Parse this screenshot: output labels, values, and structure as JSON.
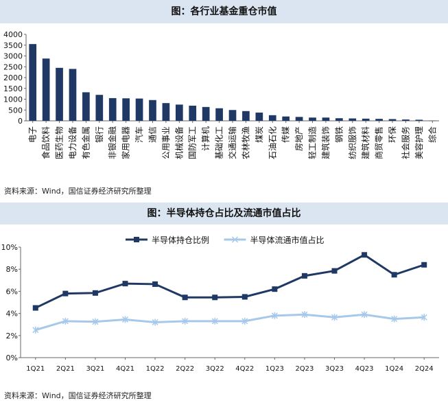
{
  "chart_data": [
    {
      "type": "bar",
      "title": "图：各行业基金重仓市值",
      "source": "资料来源：Wind，国信证券经济研究所整理",
      "categories": [
        "电子",
        "食品饮料",
        "医药生物",
        "电力设备",
        "有色金属",
        "银行",
        "非银金融",
        "家用电器",
        "汽车",
        "通信",
        "公用事业",
        "机械设备",
        "国防军工",
        "计算机",
        "基础化工",
        "交通运输",
        "农林牧渔",
        "煤炭",
        "石油石化",
        "传媒",
        "房地产",
        "轻工制造",
        "建筑装饰",
        "钢铁",
        "纺织服饰",
        "建筑材料",
        "商贸零售",
        "环保",
        "社会服务",
        "美容护理",
        "综合"
      ],
      "values": [
        3550,
        2880,
        2450,
        2400,
        1320,
        1200,
        1050,
        1040,
        1030,
        960,
        820,
        750,
        700,
        640,
        580,
        500,
        450,
        380,
        260,
        200,
        180,
        150,
        150,
        120,
        110,
        100,
        90,
        80,
        60,
        50,
        10
      ],
      "yticks": [
        0,
        500,
        1000,
        1500,
        2000,
        2500,
        3000,
        3500,
        4000
      ],
      "ylim": [
        0,
        4000
      ],
      "color": "#1f3864"
    },
    {
      "type": "line",
      "title": "图：半导体持仓占比及流通市值占比",
      "source": "资料来源：Wind，国信证券经济研究所整理",
      "categories": [
        "1Q21",
        "2Q21",
        "3Q21",
        "4Q21",
        "1Q22",
        "2Q22",
        "3Q22",
        "4Q22",
        "1Q23",
        "2Q23",
        "3Q23",
        "4Q23",
        "1Q24",
        "2Q24"
      ],
      "series": [
        {
          "name": "半导体持仓比例",
          "values": [
            4.5,
            5.8,
            5.85,
            6.7,
            6.65,
            5.45,
            5.45,
            5.5,
            6.2,
            7.4,
            7.85,
            9.3,
            7.5,
            8.4
          ],
          "color": "#1f3864"
        },
        {
          "name": "半导体流通市值占比",
          "values": [
            2.5,
            3.3,
            3.25,
            3.45,
            3.2,
            3.3,
            3.3,
            3.3,
            3.8,
            3.9,
            3.65,
            3.9,
            3.5,
            3.65
          ],
          "color": "#a6c8ea"
        }
      ],
      "yticks": [
        "0%",
        "2%",
        "4%",
        "6%",
        "8%",
        "10%"
      ],
      "ylim": [
        0,
        10
      ]
    }
  ]
}
